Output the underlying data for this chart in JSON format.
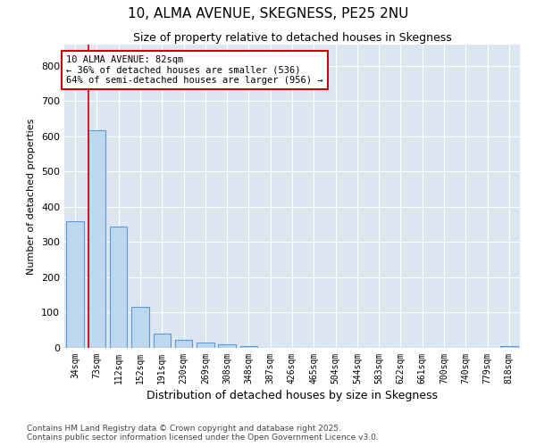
{
  "title": "10, ALMA AVENUE, SKEGNESS, PE25 2NU",
  "subtitle": "Size of property relative to detached houses in Skegness",
  "xlabel": "Distribution of detached houses by size in Skegness",
  "ylabel": "Number of detached properties",
  "categories": [
    "34sqm",
    "73sqm",
    "112sqm",
    "152sqm",
    "191sqm",
    "230sqm",
    "269sqm",
    "308sqm",
    "348sqm",
    "387sqm",
    "426sqm",
    "465sqm",
    "504sqm",
    "544sqm",
    "583sqm",
    "622sqm",
    "661sqm",
    "700sqm",
    "740sqm",
    "779sqm",
    "818sqm"
  ],
  "values": [
    360,
    617,
    344,
    117,
    40,
    22,
    15,
    9,
    5,
    0,
    0,
    0,
    0,
    0,
    0,
    0,
    0,
    0,
    0,
    0,
    5
  ],
  "bar_color": "#bdd7ee",
  "bar_edge_color": "#5b9bd5",
  "annotation_text_line1": "10 ALMA AVENUE: 82sqm",
  "annotation_text_line2": "← 36% of detached houses are smaller (536)",
  "annotation_text_line3": "64% of semi-detached houses are larger (956) →",
  "annotation_box_color": "#ffffff",
  "annotation_box_edgecolor": "#cc0000",
  "red_line_x": 0.6,
  "ylim": [
    0,
    860
  ],
  "yticks": [
    0,
    100,
    200,
    300,
    400,
    500,
    600,
    700,
    800
  ],
  "background_color": "#dce6f1",
  "grid_color": "#ffffff",
  "footer_line1": "Contains HM Land Registry data © Crown copyright and database right 2025.",
  "footer_line2": "Contains public sector information licensed under the Open Government Licence v3.0."
}
